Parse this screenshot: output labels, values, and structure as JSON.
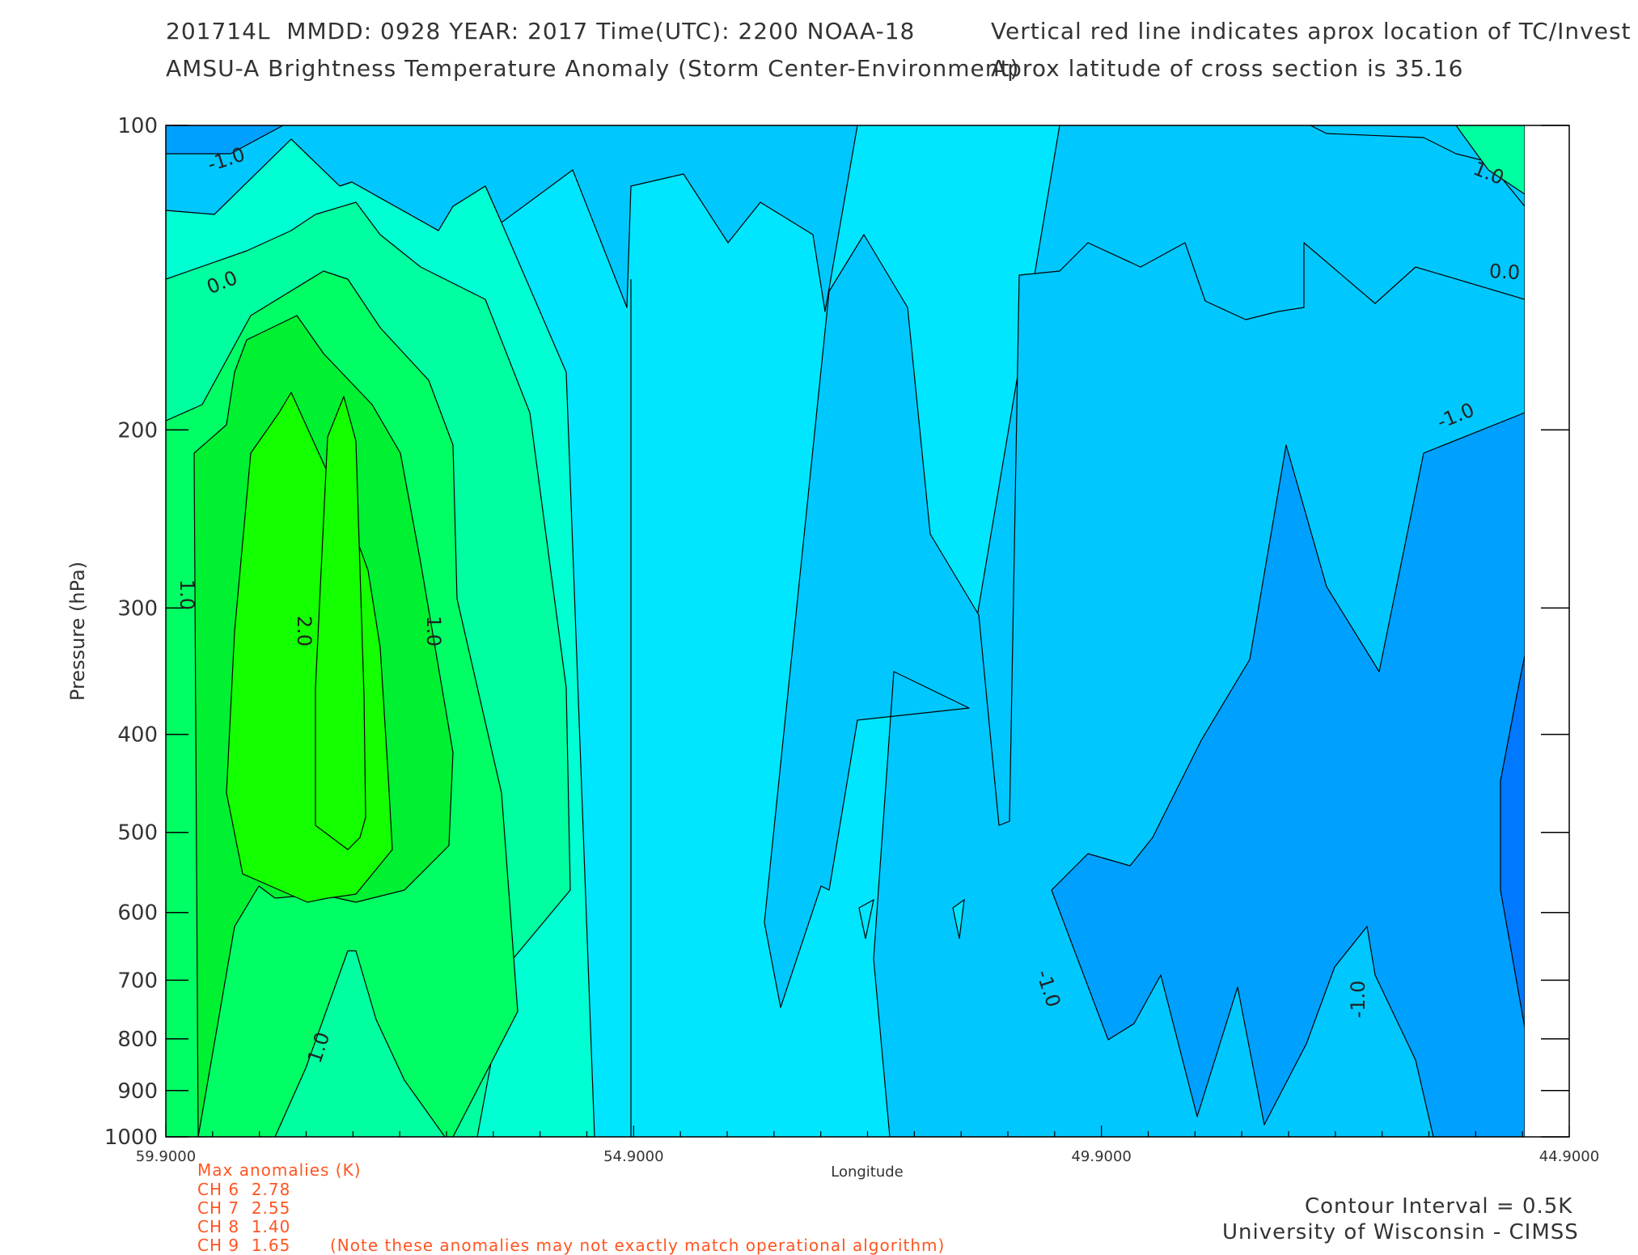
{
  "header": {
    "line1_left": "201714L  MMDD: 0928 YEAR: 2017 Time(UTC): 2200 NOAA-18",
    "line2_left": "AMSU-A Brightness Temperature Anomaly (Storm Center-Environment)",
    "line1_right": "Vertical red line indicates aprox location of TC/Invest",
    "line2_right": "Aprox latitude of cross section is 35.16"
  },
  "chart_data": {
    "type": "contour",
    "ylabel": "Pressure (hPa)",
    "xlabel": "Longitude",
    "x_ticks": [
      "59.9000",
      "54.9000",
      "49.9000",
      "44.9000"
    ],
    "y_ticks": [
      "100",
      "200",
      "300",
      "400",
      "500",
      "600",
      "700",
      "800",
      "900",
      "1000"
    ],
    "y_tick_values": [
      100,
      200,
      300,
      400,
      500,
      600,
      700,
      800,
      900,
      1000
    ],
    "y_scale": "log",
    "x_range": [
      59.9,
      44.9
    ],
    "y_range": [
      100,
      1000
    ],
    "contour_labels": [
      "-1.0",
      "1.0",
      "0.0",
      "0.0",
      "-1.0",
      "1.0",
      "2.0",
      "1.0",
      "1.0",
      "-1.0",
      "-1.0"
    ],
    "colors": {
      "lt_m1": "#00a0ff",
      "m1_m05": "#00c8ff",
      "m05_0": "#00e6ff",
      "0_05": "#00ffd2",
      "05_1": "#00ffa0",
      "1_15": "#00ff64",
      "15_2": "#00f032",
      "2_25": "#14ff00",
      "deep_blue": "#0050ff",
      "blue2": "#0078ff"
    }
  },
  "anomalies": {
    "title": "Max anomalies (K)",
    "rows": [
      {
        "channel": "CH 6",
        "value": "2.78"
      },
      {
        "channel": "CH 7",
        "value": "2.55"
      },
      {
        "channel": "CH 8",
        "value": "1.40"
      },
      {
        "channel": "CH 9",
        "value": "1.65"
      }
    ],
    "note": "(Note these anomalies may not exactly match operational algorithm)"
  },
  "footer": {
    "contour_interval": "Contour Interval = 0.5K",
    "institution": "University of Wisconsin - CIMSS"
  }
}
